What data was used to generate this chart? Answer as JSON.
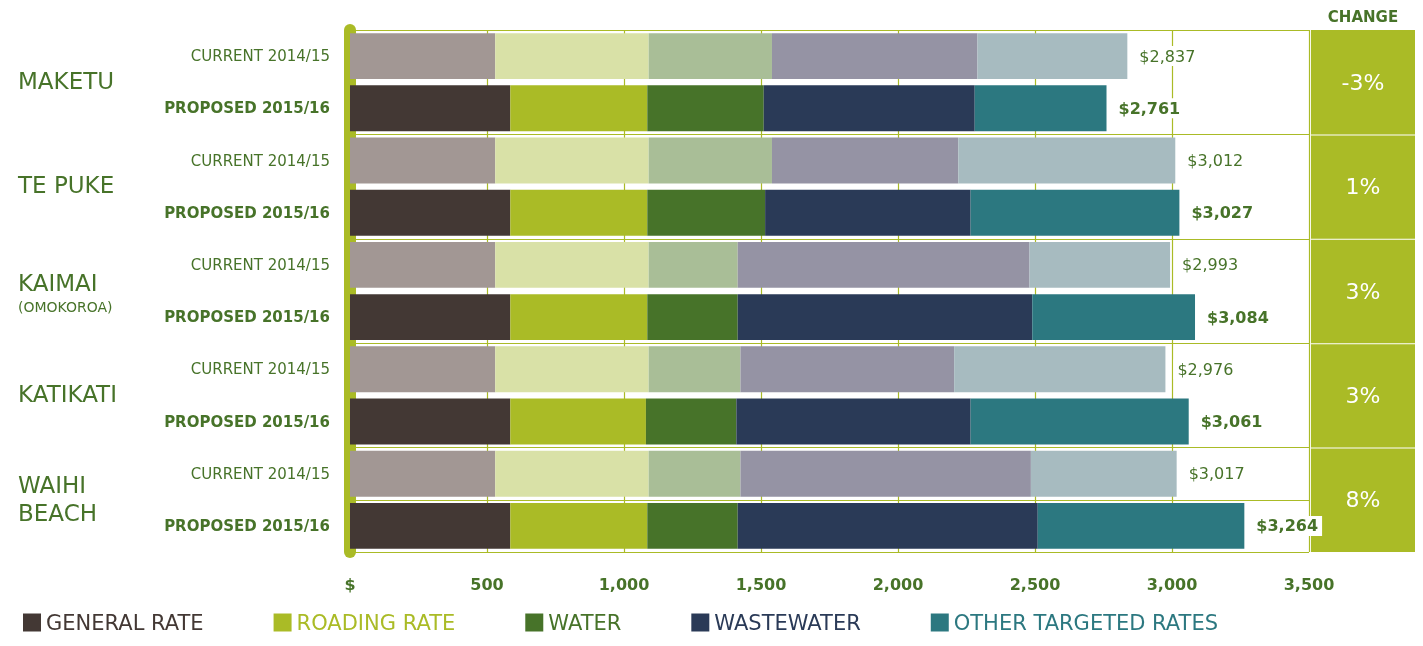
{
  "chart_data": {
    "type": "bar",
    "orientation": "horizontal",
    "stacked": true,
    "grid": true,
    "legend": "bottom",
    "categories": [
      "CURRENT 2014/15",
      "PROPOSED 2015/16",
      "CURRENT 2014/15",
      "PROPOSED 2015/16",
      "CURRENT 2014/15",
      "PROPOSED 2015/16",
      "CURRENT 2014/15",
      "PROPOSED 2015/16",
      "CURRENT 2014/15",
      "PROPOSED 2015/16"
    ],
    "series": [
      {
        "name": "GENERAL RATE",
        "color": "#433834",
        "colors": [
          "#a29794",
          "#433834",
          "#a29794",
          "#433834",
          "#a29794",
          "#433834",
          "#a29794",
          "#433834",
          "#a29794",
          "#433834"
        ],
        "values": [
          530,
          585,
          530,
          585,
          530,
          585,
          530,
          585,
          530,
          585
        ]
      },
      {
        "name": "ROADING RATE",
        "color": "#aabb26",
        "colors": [
          "#d9e1a7",
          "#aabb26",
          "#d9e1a7",
          "#aabb26",
          "#d9e1a7",
          "#aabb26",
          "#d9e1a7",
          "#aabb26",
          "#d9e1a7",
          "#aabb26"
        ],
        "values": [
          560,
          500,
          560,
          500,
          560,
          500,
          560,
          495,
          560,
          500
        ]
      },
      {
        "name": "WATER",
        "color": "#477329",
        "colors": [
          "#a9be97",
          "#477329",
          "#a9be97",
          "#477329",
          "#a9be97",
          "#477329",
          "#a9be97",
          "#477329",
          "#a9be97",
          "#477329"
        ],
        "values": [
          450,
          425,
          450,
          430,
          325,
          330,
          335,
          330,
          335,
          330
        ]
      },
      {
        "name": "WASTEWATER",
        "color": "#2a3a57",
        "colors": [
          "#9593a4",
          "#2a3a57",
          "#9593a4",
          "#2a3a57",
          "#9593a4",
          "#2a3a57",
          "#9593a4",
          "#2a3a57",
          "#9593a4",
          "#2a3a57"
        ],
        "values": [
          750,
          770,
          680,
          750,
          1065,
          1075,
          780,
          855,
          1060,
          1095
        ]
      },
      {
        "name": "OTHER TARGETED RATES",
        "color": "#2c7880",
        "colors": [
          "#a7bbc0",
          "#2c7880",
          "#a7bbc0",
          "#2c7880",
          "#a7bbc0",
          "#2c7880",
          "#a7bbc0",
          "#2c7880",
          "#a7bbc0",
          "#2c7880"
        ],
        "values": [
          547,
          481,
          792,
          762,
          513,
          594,
          771,
          796,
          532,
          754
        ]
      }
    ],
    "totals": [
      "$2,837",
      "$2,761",
      "$3,012",
      "$3,027",
      "$2,993",
      "$3,084",
      "$2,976",
      "$3,061",
      "$3,017",
      "$3,264"
    ],
    "xlim": [
      0,
      3500
    ],
    "xticks": [
      {
        "value": 0,
        "label": "$"
      },
      500,
      {
        "value": 1000,
        "label": "1,000"
      },
      {
        "value": 1500,
        "label": "1,500"
      },
      {
        "value": 2000,
        "label": "2,000"
      },
      {
        "value": 2500,
        "label": "2,500"
      },
      {
        "value": 3000,
        "label": "3,000"
      },
      {
        "value": 3500,
        "label": "3,500"
      }
    ],
    "annotations": [
      "MAKETU",
      "TE PUKE",
      "KAIMAI\n(OMOKOROA)",
      "KATIKATI",
      "WAIHI\nBEACH",
      "CHANGE",
      "-3%",
      "1%",
      "3%",
      "3%",
      "8%"
    ]
  }
}
